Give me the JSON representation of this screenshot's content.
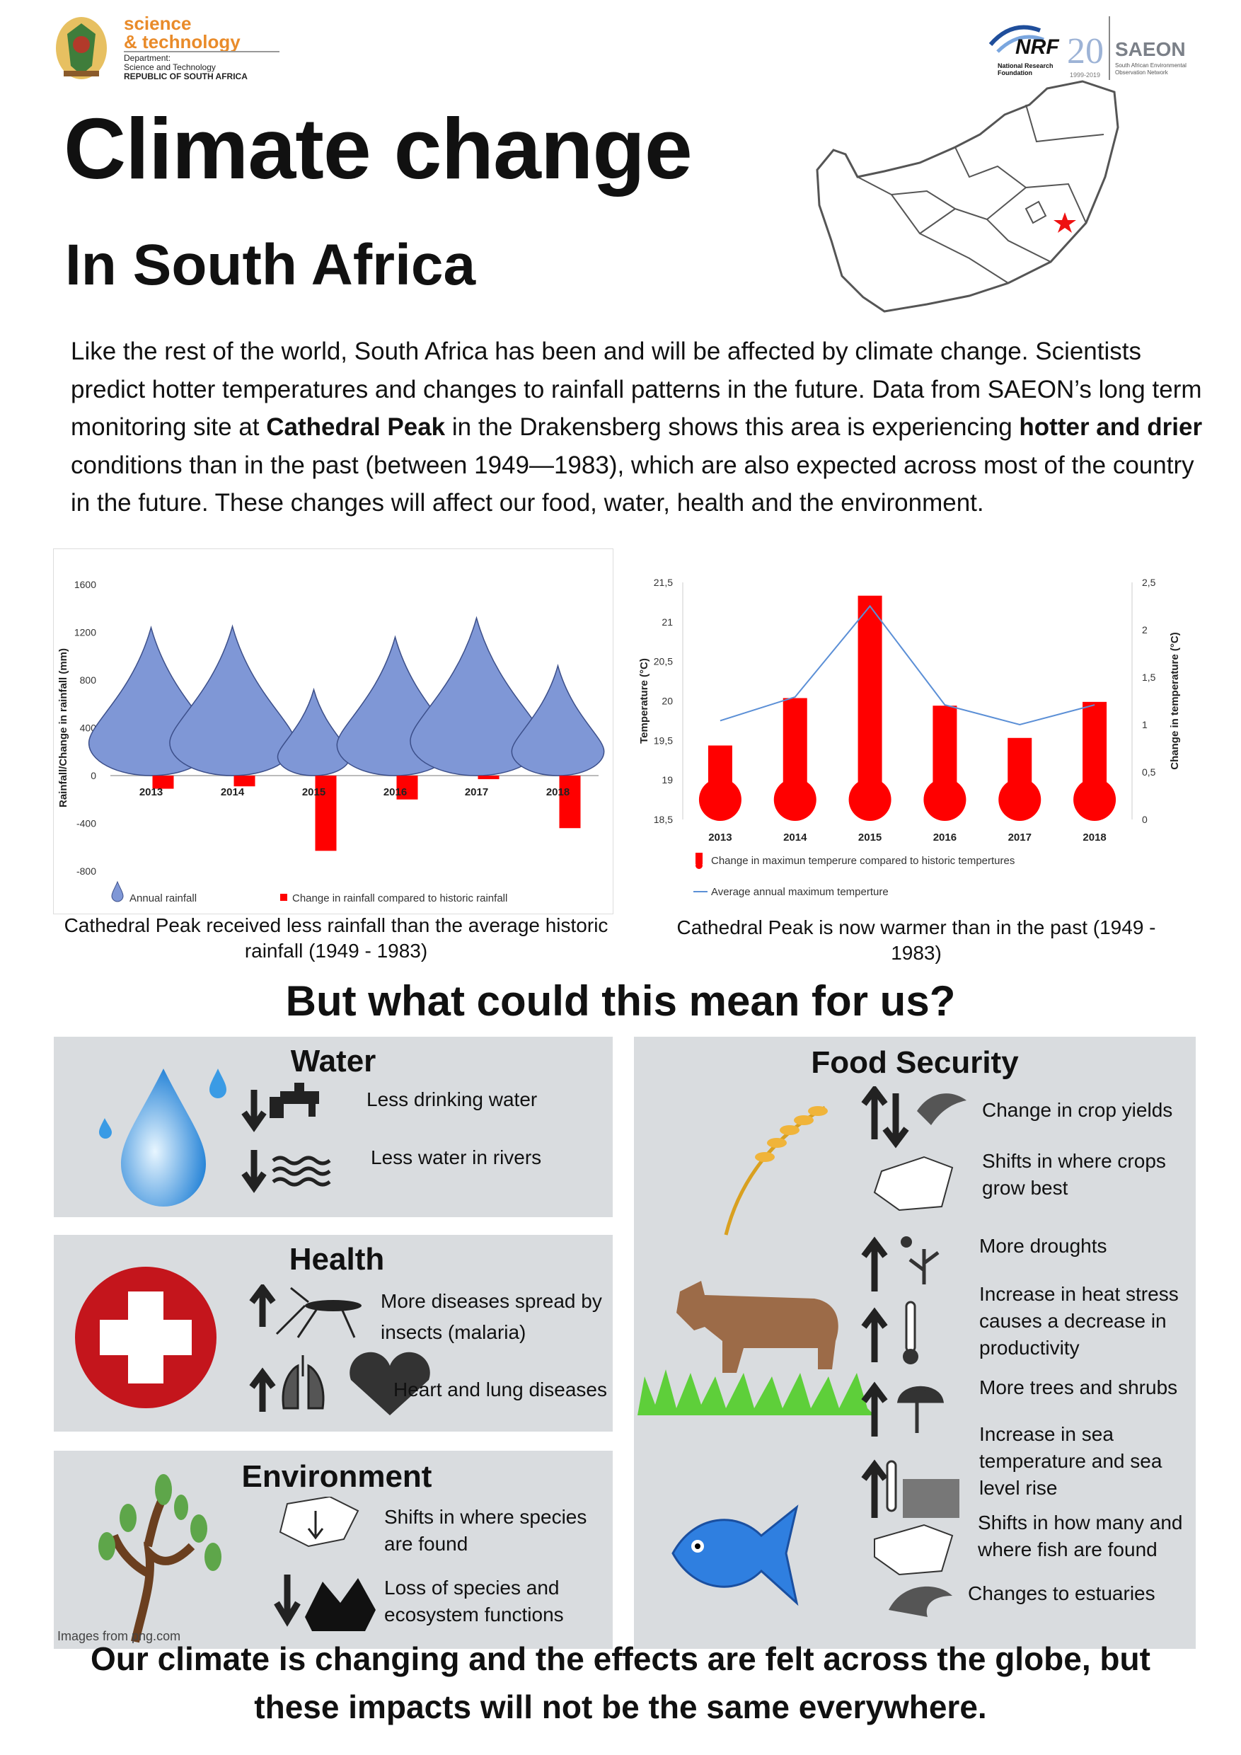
{
  "logos": {
    "dst_line1": "science",
    "dst_line2": "& technology",
    "dst_dept1": "Department:",
    "dst_dept2": "Science and Technology",
    "dst_dept3": "REPUBLIC OF SOUTH AFRICA",
    "nrf_name": "NRF",
    "nrf_sub": "National Research Foundation",
    "nrf_years": "20",
    "nrf_range": "1999-2019",
    "saeon_name": "SAEON",
    "saeon_sub": "South African Environmental Observation Network"
  },
  "title": "Climate change",
  "subtitle": "In South Africa",
  "intro": {
    "p1": "Like the rest of the world, South Africa has been and will be affected by climate change. Scientists predict hotter temperatures and changes to rainfall patterns in the future. Data from SAEON’s long term monitoring site at ",
    "b1": "Cathedral Peak",
    "p2": " in the Drakensberg shows this area is experiencing ",
    "b2": "hotter and drier",
    "p3": " conditions than in the past (between 1949—1983), which are also expected across most of the country in the future. These changes will affect our food, water, health and the environment."
  },
  "chart_data": [
    {
      "type": "bar",
      "categories": [
        "2013",
        "2014",
        "2015",
        "2016",
        "2017",
        "2018"
      ],
      "series": [
        {
          "name": "Annual rainfall",
          "values": [
            1240,
            1250,
            720,
            1160,
            1320,
            920
          ]
        },
        {
          "name": "Change in rainfall compared to historic rainfall",
          "values": [
            -110,
            -90,
            -630,
            -200,
            -30,
            -440
          ]
        }
      ],
      "ylabel": "Rainfall/Change in rainfall (mm)",
      "ylim": [
        -800,
        1600
      ],
      "yticks": [
        "1600",
        "1200",
        "800",
        "400",
        "0",
        "-400",
        "-800"
      ],
      "caption": "Cathedral Peak received less rainfall than the average historic rainfall (1949 - 1983)"
    },
    {
      "type": "bar",
      "categories": [
        "2013",
        "2014",
        "2015",
        "2016",
        "2017",
        "2018"
      ],
      "series": [
        {
          "name": "Change in maximun temperure compared to historic tempertures",
          "values": [
            0.78,
            1.28,
            2.36,
            1.2,
            0.86,
            1.24
          ]
        },
        {
          "name": "Average annual maximum temperture",
          "values": [
            19.75,
            20.05,
            21.2,
            19.95,
            19.7,
            19.95
          ]
        }
      ],
      "ylabel": "Temperature (°C)",
      "y2label": "Change in temperature (°C)",
      "ylim": [
        18.5,
        21.5
      ],
      "y2lim": [
        0,
        2.5
      ],
      "yticks": [
        "21,5",
        "21",
        "20,5",
        "20",
        "19,5",
        "19",
        "18,5"
      ],
      "y2ticks": [
        "2,5",
        "2",
        "1,5",
        "1",
        "0,5",
        "0"
      ],
      "caption": "Cathedral Peak is now warmer than in the past (1949 - 1983)"
    }
  ],
  "section_heading": "But what could this mean for us?",
  "water": {
    "title": "Water",
    "item1": "Less drinking water",
    "item2": "Less water in rivers"
  },
  "health": {
    "title": "Health",
    "item1": "More diseases spread by insects (malaria)",
    "item2": "Heart and lung diseases"
  },
  "environment": {
    "title": "Environment",
    "item1": "Shifts in where species are found",
    "item2": "Loss of species and ecosystem functions",
    "credit": "Images from png.com"
  },
  "food": {
    "title": "Food Security",
    "item1": "Change in crop yields",
    "item2": "Shifts in where crops grow best",
    "item3": "More droughts",
    "item4": "Increase in heat stress causes a decrease in productivity",
    "item5": "More trees and shrubs",
    "item6": "Increase in sea temperature and sea level rise",
    "item7": "Shifts in how many and where fish are found",
    "item8": "Changes to estuaries"
  },
  "footer": "Our climate is changing and the effects are felt across the globe, but these impacts will not be the same everywhere.",
  "colors": {
    "rain_drop": "#7f97d6",
    "red": "#ff0000",
    "panel": "#d9dcdf",
    "line_blue": "#5b8fd6"
  }
}
